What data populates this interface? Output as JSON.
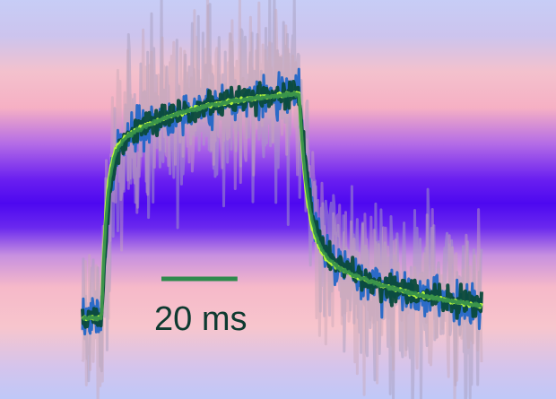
{
  "chart_data": {
    "type": "line",
    "title": "",
    "xlabel": "",
    "ylabel": "",
    "x_unit": "ms",
    "xlim": [
      0,
      105
    ],
    "ylim": [
      0,
      1.1
    ],
    "grid": false,
    "legend": "none",
    "scale_bar": {
      "length": 20,
      "unit": "ms",
      "label": "20 ms",
      "color": "#2e8a4c"
    },
    "pulse": {
      "on": 5,
      "off": 57
    },
    "series": [
      {
        "color": "#a8a0c0",
        "noise": 0.2,
        "seed": 11,
        "width": 3,
        "opacity": 0.5,
        "rise_tau": 2.2,
        "decay_tau": 3.5
      },
      {
        "color": "#c8a8b8",
        "noise": 0.17,
        "seed": 23,
        "width": 3,
        "opacity": 0.45,
        "rise_tau": 2.0,
        "decay_tau": 3.2
      },
      {
        "color": "#1a64c8",
        "noise": 0.045,
        "seed": 37,
        "width": 3,
        "opacity": 0.9,
        "rise_tau": 1.6,
        "decay_tau": 2.6
      },
      {
        "color": "#0a4a3a",
        "noise": 0.03,
        "seed": 51,
        "width": 4,
        "opacity": 0.95,
        "rise_tau": 1.8,
        "decay_tau": 2.8
      },
      {
        "color": "#bfff3a",
        "noise": 0.004,
        "seed": 67,
        "width": 3.5,
        "opacity": 0.95,
        "rise_tau": 1.2,
        "decay_tau": 2.0
      },
      {
        "color": "#2e8a4c",
        "noise": 0.004,
        "seed": 79,
        "width": 3.5,
        "opacity": 0.9,
        "rise_tau": 1.4,
        "decay_tau": 2.3
      }
    ]
  }
}
